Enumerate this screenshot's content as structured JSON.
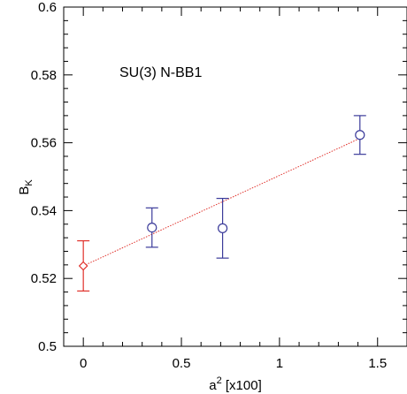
{
  "chart_data": {
    "type": "scatter",
    "annotation": "SU(3) N-BB1",
    "xlabel": {
      "main": "a",
      "sup": "2",
      "suffix": " [x100]"
    },
    "ylabel": {
      "main": "B",
      "sub": "K"
    },
    "xlim": [
      -0.1,
      1.65
    ],
    "ylim": [
      0.5,
      0.6
    ],
    "x_ticks": [
      0,
      0.5,
      1,
      1.5
    ],
    "x_tick_labels": [
      "0",
      "0.5",
      "1",
      "1.5"
    ],
    "y_ticks": [
      0.5,
      0.52,
      0.54,
      0.56,
      0.58,
      0.6
    ],
    "y_tick_labels": [
      "0.5",
      "0.52",
      "0.54",
      "0.56",
      "0.58",
      "0.6"
    ],
    "grid": false,
    "series": [
      {
        "marker": "circle",
        "color": "#3b3b9a",
        "points": [
          {
            "x": 0.35,
            "y": 0.535,
            "err": 0.0058
          },
          {
            "x": 0.71,
            "y": 0.5348,
            "err": 0.0088
          },
          {
            "x": 1.41,
            "y": 0.5623,
            "err": 0.0057
          }
        ]
      },
      {
        "marker": "diamond",
        "color": "#e0302a",
        "points": [
          {
            "x": 0.0,
            "y": 0.5237,
            "err": 0.0074
          }
        ]
      }
    ],
    "fit_line": {
      "style": "dotted",
      "color": "#e0302a",
      "points": [
        {
          "x": 0.0,
          "y": 0.5237
        },
        {
          "x": 1.41,
          "y": 0.5613
        }
      ]
    }
  }
}
